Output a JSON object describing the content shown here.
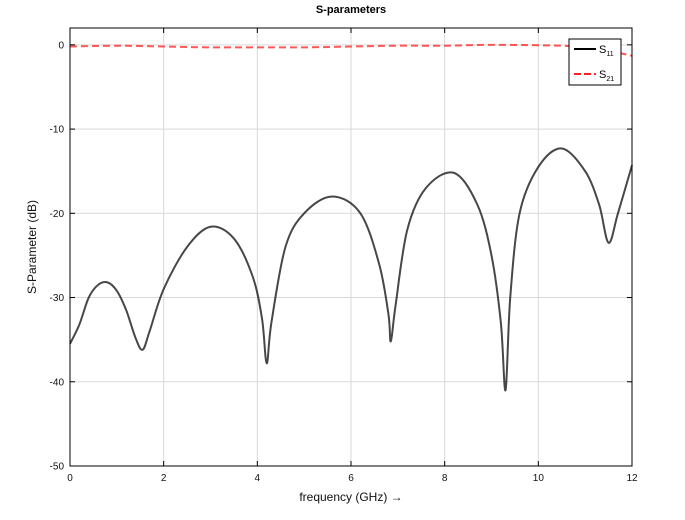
{
  "chart_data": {
    "type": "line",
    "title": "S-parameters",
    "xlabel": "frequency (GHz) →",
    "ylabel": "S-Parameter (dB)",
    "xlim": [
      0,
      12
    ],
    "ylim": [
      -50,
      2
    ],
    "xticks": [
      0,
      2,
      4,
      6,
      8,
      10,
      12
    ],
    "yticks": [
      0,
      -10,
      -20,
      -30,
      -40,
      -50
    ],
    "grid": true,
    "legend_position": "top-right",
    "series": [
      {
        "name": "s11",
        "name_main": "S",
        "name_sub": "11",
        "color": "#000000",
        "style": "solid",
        "x": [
          0,
          0.2,
          0.4,
          0.6,
          0.8,
          1.0,
          1.2,
          1.4,
          1.55,
          1.7,
          2.0,
          2.5,
          3.0,
          3.5,
          3.9,
          4.1,
          4.2,
          4.3,
          4.6,
          5.0,
          5.6,
          6.2,
          6.6,
          6.8,
          6.85,
          6.95,
          7.2,
          7.6,
          8.2,
          8.7,
          9.0,
          9.2,
          9.3,
          9.4,
          9.6,
          10.0,
          10.5,
          11.0,
          11.3,
          11.5,
          11.7,
          12.0
        ],
        "y": [
          -35.5,
          -33.2,
          -30.0,
          -28.5,
          -28.2,
          -29.2,
          -31.5,
          -34.8,
          -36.2,
          -34.0,
          -29.0,
          -24.0,
          -21.6,
          -23.0,
          -27.5,
          -32.5,
          -37.8,
          -33.0,
          -24.0,
          -20.0,
          -18.0,
          -20.0,
          -26.0,
          -32.0,
          -35.2,
          -31.0,
          -22.0,
          -17.0,
          -15.2,
          -19.0,
          -25.0,
          -33.0,
          -41.0,
          -30.0,
          -20.0,
          -14.5,
          -12.3,
          -15.0,
          -19.0,
          -23.5,
          -20.0,
          -14.3
        ]
      },
      {
        "name": "s21",
        "name_main": "S",
        "name_sub": "21",
        "color": "#ff2020",
        "style": "dashed",
        "x": [
          0,
          1,
          2,
          3,
          4,
          5,
          6,
          7,
          8,
          9,
          10,
          10.5,
          11,
          11.5,
          12
        ],
        "y": [
          -0.2,
          -0.1,
          -0.2,
          -0.3,
          -0.3,
          -0.3,
          -0.2,
          -0.1,
          -0.1,
          0.0,
          -0.05,
          -0.1,
          -0.3,
          -0.7,
          -1.3
        ]
      }
    ]
  }
}
